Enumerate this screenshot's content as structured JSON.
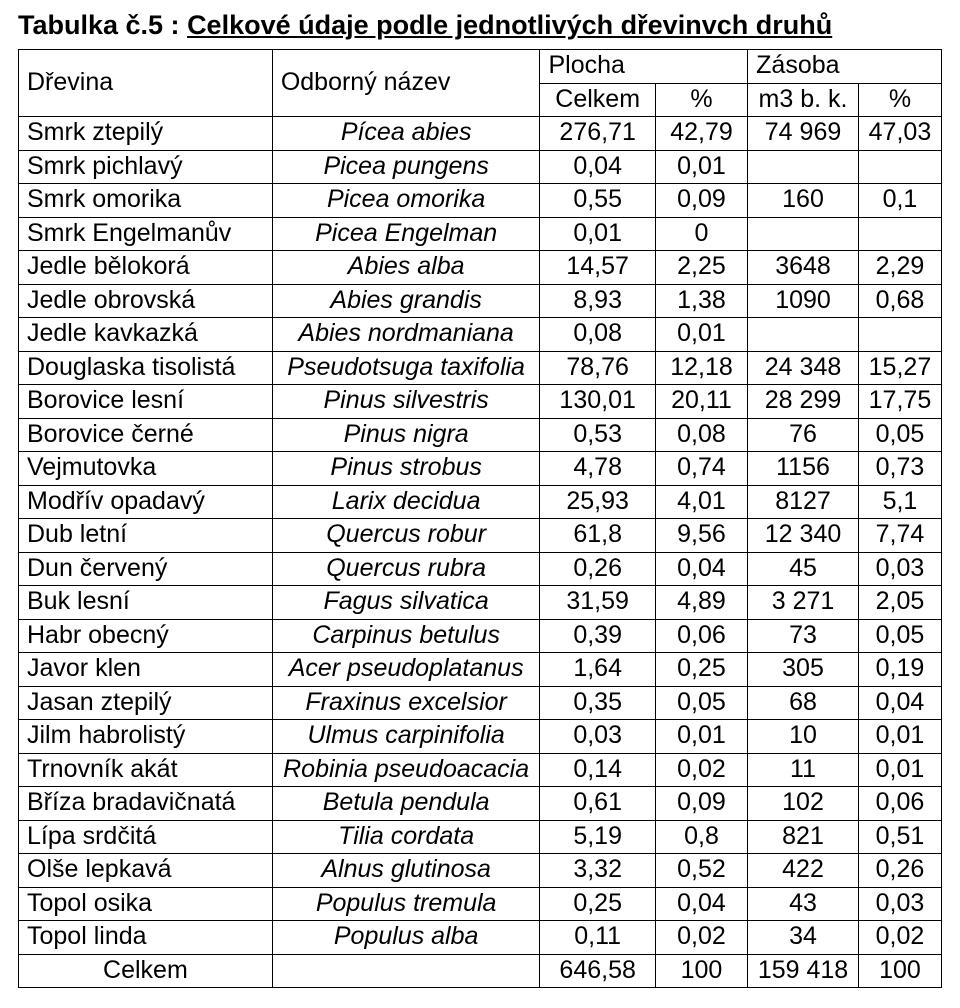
{
  "title_prefix": "Tabulka č.5 : ",
  "title_underlined": "Celkové údaje podle jednotlivých dřevinvch druhů",
  "headers": {
    "drevina": "Dřevina",
    "odborny_nazev": "Odborný název",
    "plocha": "Plocha",
    "zasoba": "Zásoba",
    "celkem": "Celkem",
    "pct1": "%",
    "m3bk": "m3 b. k.",
    "pct2": "%"
  },
  "rows": [
    {
      "name": "Smrk ztepilý",
      "latin": "Pícea abies",
      "area": "276,71",
      "area_pct": "42,79",
      "stock": "74 969",
      "stock_pct": "47,03"
    },
    {
      "name": "Smrk pichlavý",
      "latin": "Picea pungens",
      "area": "0,04",
      "area_pct": "0,01",
      "stock": "",
      "stock_pct": ""
    },
    {
      "name": "Smrk omorika",
      "latin": "Picea omorika",
      "area": "0,55",
      "area_pct": "0,09",
      "stock": "160",
      "stock_pct": "0,1"
    },
    {
      "name": "Smrk Engelmanův",
      "latin": "Picea Engelman",
      "area": "0,01",
      "area_pct": "0",
      "stock": "",
      "stock_pct": ""
    },
    {
      "name": "Jedle bělokorá",
      "latin": "Abies alba",
      "area": "14,57",
      "area_pct": "2,25",
      "stock": "3648",
      "stock_pct": "2,29"
    },
    {
      "name": "Jedle obrovská",
      "latin": "Abies grandis",
      "area": "8,93",
      "area_pct": "1,38",
      "stock": "1090",
      "stock_pct": "0,68"
    },
    {
      "name": "Jedle kavkazká",
      "latin": "Abies nordmaniana",
      "area": "0,08",
      "area_pct": "0,01",
      "stock": "",
      "stock_pct": ""
    },
    {
      "name": "Douglaska tisolistá",
      "latin": "Pseudotsuga taxifolia",
      "area": "78,76",
      "area_pct": "12,18",
      "stock": "24 348",
      "stock_pct": "15,27"
    },
    {
      "name": "Borovice lesní",
      "latin": "Pinus silvestris",
      "area": "130,01",
      "area_pct": "20,11",
      "stock": "28 299",
      "stock_pct": "17,75"
    },
    {
      "name": "Borovice černé",
      "latin": "Pinus nigra",
      "area": "0,53",
      "area_pct": "0,08",
      "stock": "76",
      "stock_pct": "0,05"
    },
    {
      "name": "Vejmutovka",
      "latin": "Pinus strobus",
      "area": "4,78",
      "area_pct": "0,74",
      "stock": "1156",
      "stock_pct": "0,73"
    },
    {
      "name": "Modřív opadavý",
      "latin": "Larix decidua",
      "area": "25,93",
      "area_pct": "4,01",
      "stock": "8127",
      "stock_pct": "5,1"
    },
    {
      "name": "Dub letní",
      "latin": "Quercus robur",
      "area": "61,8",
      "area_pct": "9,56",
      "stock": "12 340",
      "stock_pct": "7,74"
    },
    {
      "name": "Dun červený",
      "latin": "Quercus rubra",
      "area": "0,26",
      "area_pct": "0,04",
      "stock": "45",
      "stock_pct": "0,03"
    },
    {
      "name": "Buk lesní",
      "latin": "Fagus silvatica",
      "area": "31,59",
      "area_pct": "4,89",
      "stock": "3 271",
      "stock_pct": "2,05"
    },
    {
      "name": "Habr obecný",
      "latin": "Carpinus betulus",
      "area": "0,39",
      "area_pct": "0,06",
      "stock": "73",
      "stock_pct": "0,05"
    },
    {
      "name": "Javor klen",
      "latin": "Acer pseudoplatanus",
      "area": "1,64",
      "area_pct": "0,25",
      "stock": "305",
      "stock_pct": "0,19"
    },
    {
      "name": "Jasan ztepilý",
      "latin": "Fraxinus excelsior",
      "area": "0,35",
      "area_pct": "0,05",
      "stock": "68",
      "stock_pct": "0,04"
    },
    {
      "name": "Jilm habrolistý",
      "latin": "Ulmus carpinifolia",
      "area": "0,03",
      "area_pct": "0,01",
      "stock": "10",
      "stock_pct": "0,01"
    },
    {
      "name": "Trnovník akát",
      "latin": "Robinia pseudoacacia",
      "area": "0,14",
      "area_pct": "0,02",
      "stock": "11",
      "stock_pct": "0,01"
    },
    {
      "name": "Bříza bradavičnatá",
      "latin": "Betula pendula",
      "area": "0,61",
      "area_pct": "0,09",
      "stock": "102",
      "stock_pct": "0,06"
    },
    {
      "name": "Lípa srdčitá",
      "latin": "Tilia cordata",
      "area": "5,19",
      "area_pct": "0,8",
      "stock": "821",
      "stock_pct": "0,51"
    },
    {
      "name": "Olše lepkavá",
      "latin": "Alnus glutinosa",
      "area": "3,32",
      "area_pct": "0,52",
      "stock": "422",
      "stock_pct": "0,26"
    },
    {
      "name": "Topol osika",
      "latin": "Populus tremula",
      "area": "0,25",
      "area_pct": "0,04",
      "stock": "43",
      "stock_pct": "0,03"
    },
    {
      "name": "Topol linda",
      "latin": "Populus alba",
      "area": "0,11",
      "area_pct": "0,02",
      "stock": "34",
      "stock_pct": "0,02"
    }
  ],
  "total": {
    "label": "Celkem",
    "area": "646,58",
    "area_pct": "100",
    "stock": "159 418",
    "stock_pct": "100"
  },
  "colors": {
    "text": "#000000",
    "background": "#ffffff",
    "border": "#000000"
  },
  "typography": {
    "font_family": "Arial",
    "title_fontsize_pt": 20,
    "cell_fontsize_pt": 19,
    "title_bold": true
  }
}
